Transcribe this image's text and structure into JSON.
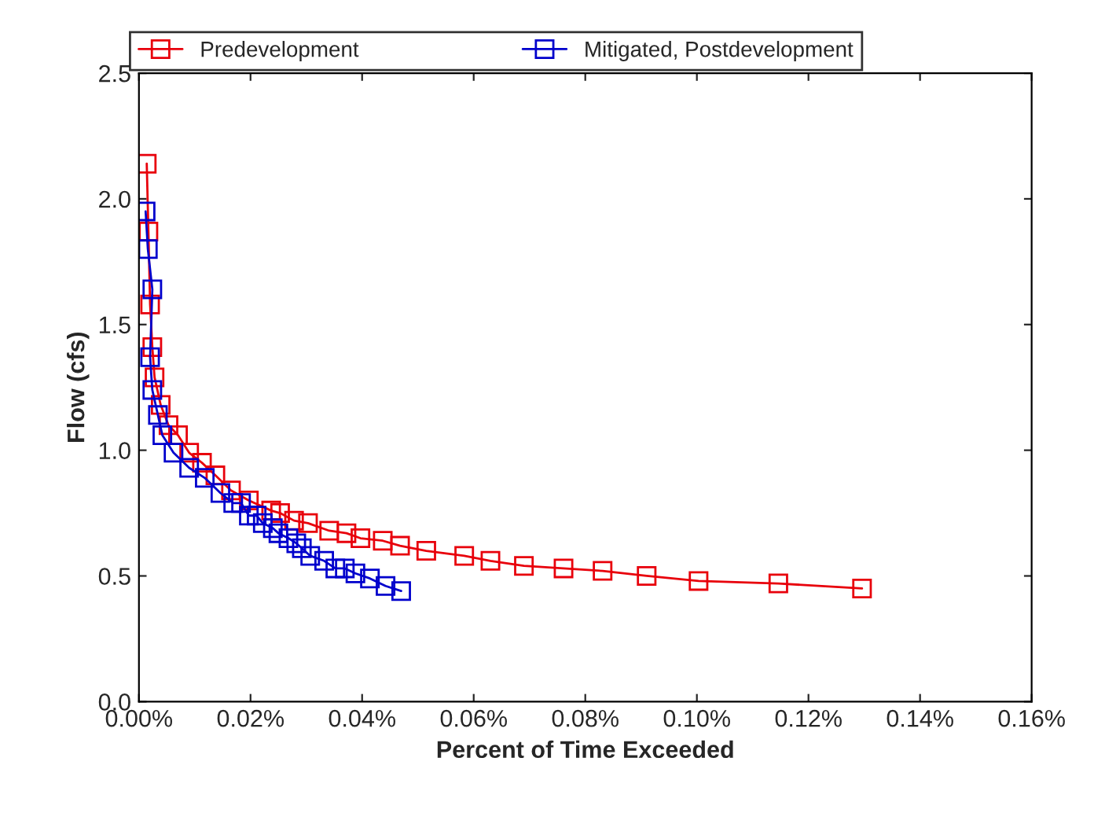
{
  "chart_data": {
    "type": "line",
    "xlabel": "Percent of Time Exceeded",
    "ylabel": "Flow (cfs)",
    "marker": "square",
    "legend": "top",
    "grid": false,
    "xlim": [
      0,
      0.16
    ],
    "ylim": [
      0,
      2.5
    ],
    "xticks": [
      {
        "value": 0,
        "label": "0.00%"
      },
      {
        "value": 0.02,
        "label": "0.02%"
      },
      {
        "value": 0.04,
        "label": "0.04%"
      },
      {
        "value": 0.06,
        "label": "0.06%"
      },
      {
        "value": 0.08,
        "label": "0.08%"
      },
      {
        "value": 0.1,
        "label": "0.10%"
      },
      {
        "value": 0.12,
        "label": "0.12%"
      },
      {
        "value": 0.14,
        "label": "0.14%"
      },
      {
        "value": 0.16,
        "label": "0.16%"
      }
    ],
    "yticks": [
      {
        "value": 0,
        "label": "0.0"
      },
      {
        "value": 0.5,
        "label": "0.5"
      },
      {
        "value": 1,
        "label": "1.0"
      },
      {
        "value": 1.5,
        "label": "1.5"
      },
      {
        "value": 2,
        "label": "2.0"
      },
      {
        "value": 2.5,
        "label": "2.5"
      }
    ],
    "series": [
      {
        "name": "Predevelopment",
        "color": "#e8000b",
        "x": [
          0.0014,
          0.0017,
          0.002,
          0.0024,
          0.0028,
          0.0039,
          0.0053,
          0.007,
          0.009,
          0.0113,
          0.0137,
          0.0165,
          0.0197,
          0.0237,
          0.0253,
          0.0278,
          0.0303,
          0.0341,
          0.0372,
          0.0397,
          0.0437,
          0.0468,
          0.0515,
          0.0583,
          0.063,
          0.069,
          0.0761,
          0.0831,
          0.091,
          0.1003,
          0.1146,
          0.1296
        ],
        "values": [
          2.14,
          1.87,
          1.58,
          1.41,
          1.29,
          1.18,
          1.1,
          1.06,
          0.99,
          0.95,
          0.9,
          0.84,
          0.8,
          0.76,
          0.75,
          0.72,
          0.71,
          0.68,
          0.67,
          0.65,
          0.64,
          0.62,
          0.6,
          0.58,
          0.56,
          0.54,
          0.53,
          0.52,
          0.5,
          0.48,
          0.47,
          0.45
        ]
      },
      {
        "name": "Mitigated, Postdevelopment",
        "color": "#0000cc",
        "x": [
          0.0012,
          0.0016,
          0.0024,
          0.002,
          0.0024,
          0.0034,
          0.0042,
          0.0062,
          0.009,
          0.0118,
          0.0146,
          0.0169,
          0.0183,
          0.0197,
          0.0211,
          0.0222,
          0.024,
          0.025,
          0.0268,
          0.0282,
          0.0292,
          0.0307,
          0.0332,
          0.0352,
          0.0369,
          0.0388,
          0.0414,
          0.0442,
          0.047
        ],
        "values": [
          1.95,
          1.8,
          1.64,
          1.37,
          1.24,
          1.14,
          1.06,
          0.99,
          0.93,
          0.89,
          0.83,
          0.79,
          0.79,
          0.74,
          0.74,
          0.71,
          0.69,
          0.67,
          0.65,
          0.63,
          0.61,
          0.58,
          0.56,
          0.53,
          0.53,
          0.51,
          0.49,
          0.46,
          0.44
        ]
      }
    ]
  }
}
